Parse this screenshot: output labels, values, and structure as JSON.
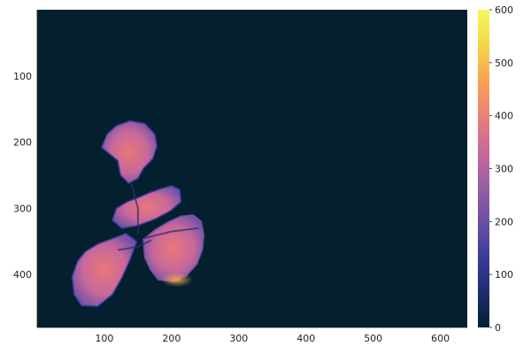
{
  "chart_data": {
    "type": "heatmap",
    "title": "",
    "xlabel": "",
    "ylabel": "",
    "xlim": [
      0,
      640
    ],
    "ylim": [
      480,
      0
    ],
    "y_axis_inverted": true,
    "x_ticks": [
      100,
      200,
      300,
      400,
      500,
      600
    ],
    "y_ticks": [
      100,
      200,
      300,
      400
    ],
    "grid": false,
    "background_value": 0,
    "colormap": {
      "name": "thermal",
      "stops": [
        "#04202f",
        "#1d2d6e",
        "#3b3c9a",
        "#6b4fa8",
        "#9a5da6",
        "#c8699a",
        "#ec7f76",
        "#f9a44f",
        "#f4d64a",
        "#f0f95d"
      ]
    },
    "colorbar": {
      "range": [
        0,
        600
      ],
      "ticks": [
        0,
        100,
        200,
        300,
        400,
        500,
        600
      ]
    },
    "regions": [
      {
        "name": "upper leaf",
        "approx_center": [
          140,
          235
        ],
        "value_range": [
          150,
          380
        ],
        "typical_value": 310
      },
      {
        "name": "left leaf",
        "approx_center": [
          95,
          395
        ],
        "value_range": [
          150,
          400
        ],
        "typical_value": 300
      },
      {
        "name": "right leaf",
        "approx_center": [
          215,
          360
        ],
        "value_range": [
          180,
          420
        ],
        "typical_value": 300
      },
      {
        "name": "center",
        "approx_center": [
          150,
          330
        ],
        "value_range": [
          120,
          300
        ],
        "typical_value": 220
      }
    ]
  }
}
